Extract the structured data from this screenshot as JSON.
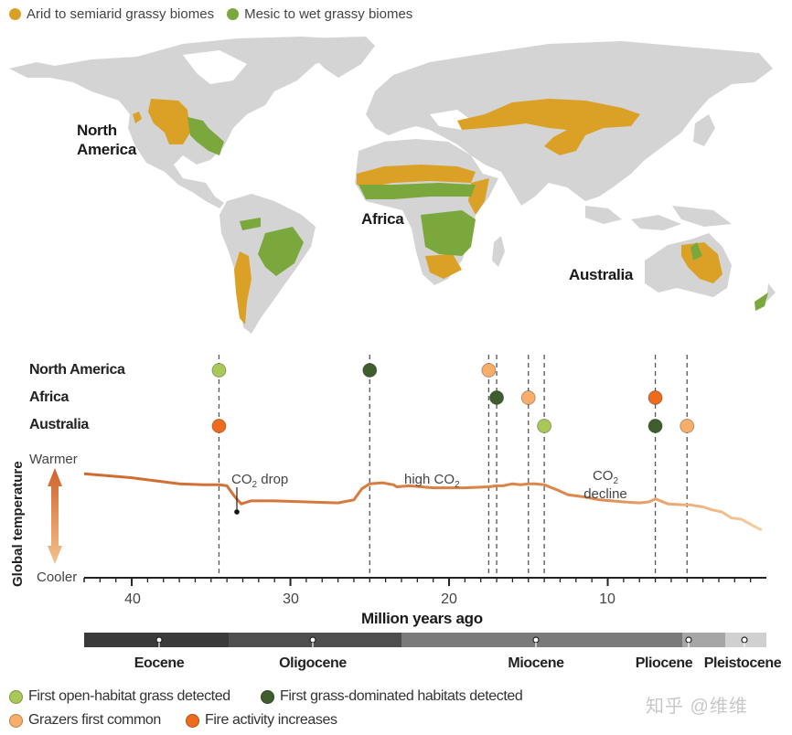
{
  "legend_top": {
    "items": [
      {
        "label": "Arid to semiarid grassy biomes",
        "color": "#DBA126"
      },
      {
        "label": "Mesic to wet grassy biomes",
        "color": "#7BA83C"
      }
    ]
  },
  "map": {
    "land_color": "#D4D4D4",
    "labels": {
      "north_america_line1": "North",
      "north_america_line2": "America",
      "africa": "Africa",
      "australia": "Australia"
    }
  },
  "timeline": {
    "rows": [
      {
        "label": "North America"
      },
      {
        "label": "Africa"
      },
      {
        "label": "Australia"
      }
    ]
  },
  "y_axis": {
    "title": "Global temperature",
    "top_label": "Warmer",
    "bottom_label": "Cooler"
  },
  "annotations": {
    "co2_drop_pre": "CO",
    "co2_drop_sub": "2",
    "co2_drop_post": " drop",
    "high_co2_pre": "high CO",
    "high_co2_sub": "2",
    "co2_decline_pre": "CO",
    "co2_decline_sub": "2",
    "co2_decline_line2": "decline"
  },
  "x_axis": {
    "label": "Million years ago",
    "ticks": [
      "40",
      "30",
      "20",
      "10"
    ]
  },
  "epochs": [
    {
      "label": "Eocene",
      "color": "#3A3A3A"
    },
    {
      "label": "Oligocene",
      "color": "#4E4E4E"
    },
    {
      "label": "Miocene",
      "color": "#7A7A7A"
    },
    {
      "label": "Pliocene",
      "color": "#A6A6A6"
    },
    {
      "label": "Pleistocene",
      "color": "#D0D0D0"
    }
  ],
  "legend_bottom": {
    "items": [
      {
        "label": "First open-habitat grass detected",
        "color": "#A8C957"
      },
      {
        "label": "First grass-dominated habitats detected",
        "color": "#3E5E2E"
      },
      {
        "label": "Grazers first common",
        "color": "#F6AE6A"
      },
      {
        "label": "Fire activity increases",
        "color": "#EE6B1E"
      }
    ]
  },
  "watermark": "知乎 @维维",
  "chart_data": {
    "type": "line",
    "title": "",
    "xlabel": "Million years ago",
    "ylabel": "Global temperature",
    "x_reversed": true,
    "xlim": [
      43,
      0
    ],
    "x_ticks": [
      40,
      30,
      20,
      10
    ],
    "y_scale": "qualitative (Cooler to Warmer)",
    "ylim": [
      0,
      100
    ],
    "series": [
      {
        "name": "Global temperature",
        "x": [
          43,
          40,
          37,
          35.5,
          34.5,
          34.0,
          33.5,
          33.1,
          32.5,
          31,
          29,
          27,
          26,
          25.5,
          25,
          24.2,
          23.5,
          23.3,
          22.5,
          21,
          19,
          17.5,
          17.0,
          16.6,
          16,
          15.5,
          15,
          14.6,
          14,
          13.2,
          12.5,
          11.5,
          10.5,
          9,
          8,
          7.4,
          7.0,
          6.2,
          5.2,
          4.8,
          4.0,
          3.4,
          2.8,
          2.2,
          1.6,
          0.8,
          0.3
        ],
        "y": [
          88,
          84,
          78,
          77,
          77,
          76,
          65,
          58,
          61,
          61,
          60,
          59,
          62,
          73,
          78,
          79,
          77,
          75,
          76,
          74,
          74,
          75,
          76,
          76,
          78,
          77,
          78,
          78,
          77,
          72,
          67,
          65,
          62,
          60,
          59,
          60,
          63,
          58,
          57,
          57,
          55,
          52,
          50,
          44,
          43,
          36,
          32
        ]
      }
    ],
    "annotations": [
      {
        "text": "CO2 drop",
        "x": 33.3
      },
      {
        "text": "high CO2",
        "x": 21
      },
      {
        "text": "CO2 decline",
        "x": 10
      }
    ],
    "events": {
      "North America": [
        {
          "x": 34.5,
          "type": "First open-habitat grass detected"
        },
        {
          "x": 25,
          "type": "First grass-dominated habitats detected"
        },
        {
          "x": 17.5,
          "type": "Grazers first common"
        }
      ],
      "Africa": [
        {
          "x": 17,
          "type": "First grass-dominated habitats detected"
        },
        {
          "x": 15,
          "type": "Grazers first common"
        },
        {
          "x": 7,
          "type": "Fire activity increases"
        }
      ],
      "Australia": [
        {
          "x": 34.5,
          "type": "Fire activity increases"
        },
        {
          "x": 14,
          "type": "First open-habitat grass detected"
        },
        {
          "x": 7,
          "type": "First grass-dominated habitats detected"
        },
        {
          "x": 5,
          "type": "Grazers first common"
        }
      ]
    },
    "dashed_lines_x": [
      34.5,
      25,
      17.5,
      17,
      15,
      14,
      7,
      5
    ],
    "epochs": [
      {
        "name": "Eocene",
        "start": 43,
        "end": 33.9
      },
      {
        "name": "Oligocene",
        "start": 33.9,
        "end": 23.0
      },
      {
        "name": "Miocene",
        "start": 23.0,
        "end": 5.3
      },
      {
        "name": "Pliocene",
        "start": 5.3,
        "end": 2.6
      },
      {
        "name": "Pleistocene",
        "start": 2.6,
        "end": 0
      }
    ]
  }
}
